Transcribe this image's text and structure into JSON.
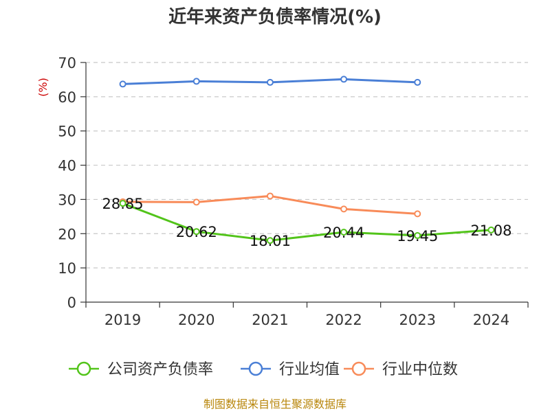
{
  "chart_data": {
    "type": "line",
    "title": "近年来资产负债率情况(%)",
    "ylabel": "(%)",
    "xlabel": "",
    "categories": [
      "2019",
      "2020",
      "2021",
      "2022",
      "2023",
      "2024"
    ],
    "ylim": [
      0,
      70
    ],
    "yticks": [
      0,
      10,
      20,
      30,
      40,
      50,
      60,
      70
    ],
    "grid": true,
    "legend_position": "bottom",
    "series": [
      {
        "name": "公司资产负债率",
        "color": "#52c41a",
        "values": [
          28.85,
          20.62,
          18.01,
          20.44,
          19.45,
          21.08
        ],
        "labels": [
          "28.85",
          "20.62",
          "18.01",
          "20.44",
          "19.45",
          "21.08"
        ]
      },
      {
        "name": "行业均值",
        "color": "#4a7fd6",
        "values": [
          63.7,
          64.5,
          64.2,
          65.1,
          64.2,
          null
        ]
      },
      {
        "name": "行业中位数",
        "color": "#f88b59",
        "values": [
          29.3,
          29.2,
          31.0,
          27.2,
          25.8,
          null
        ]
      }
    ]
  },
  "footer": {
    "source": "制图数据来自恒生聚源数据库"
  }
}
